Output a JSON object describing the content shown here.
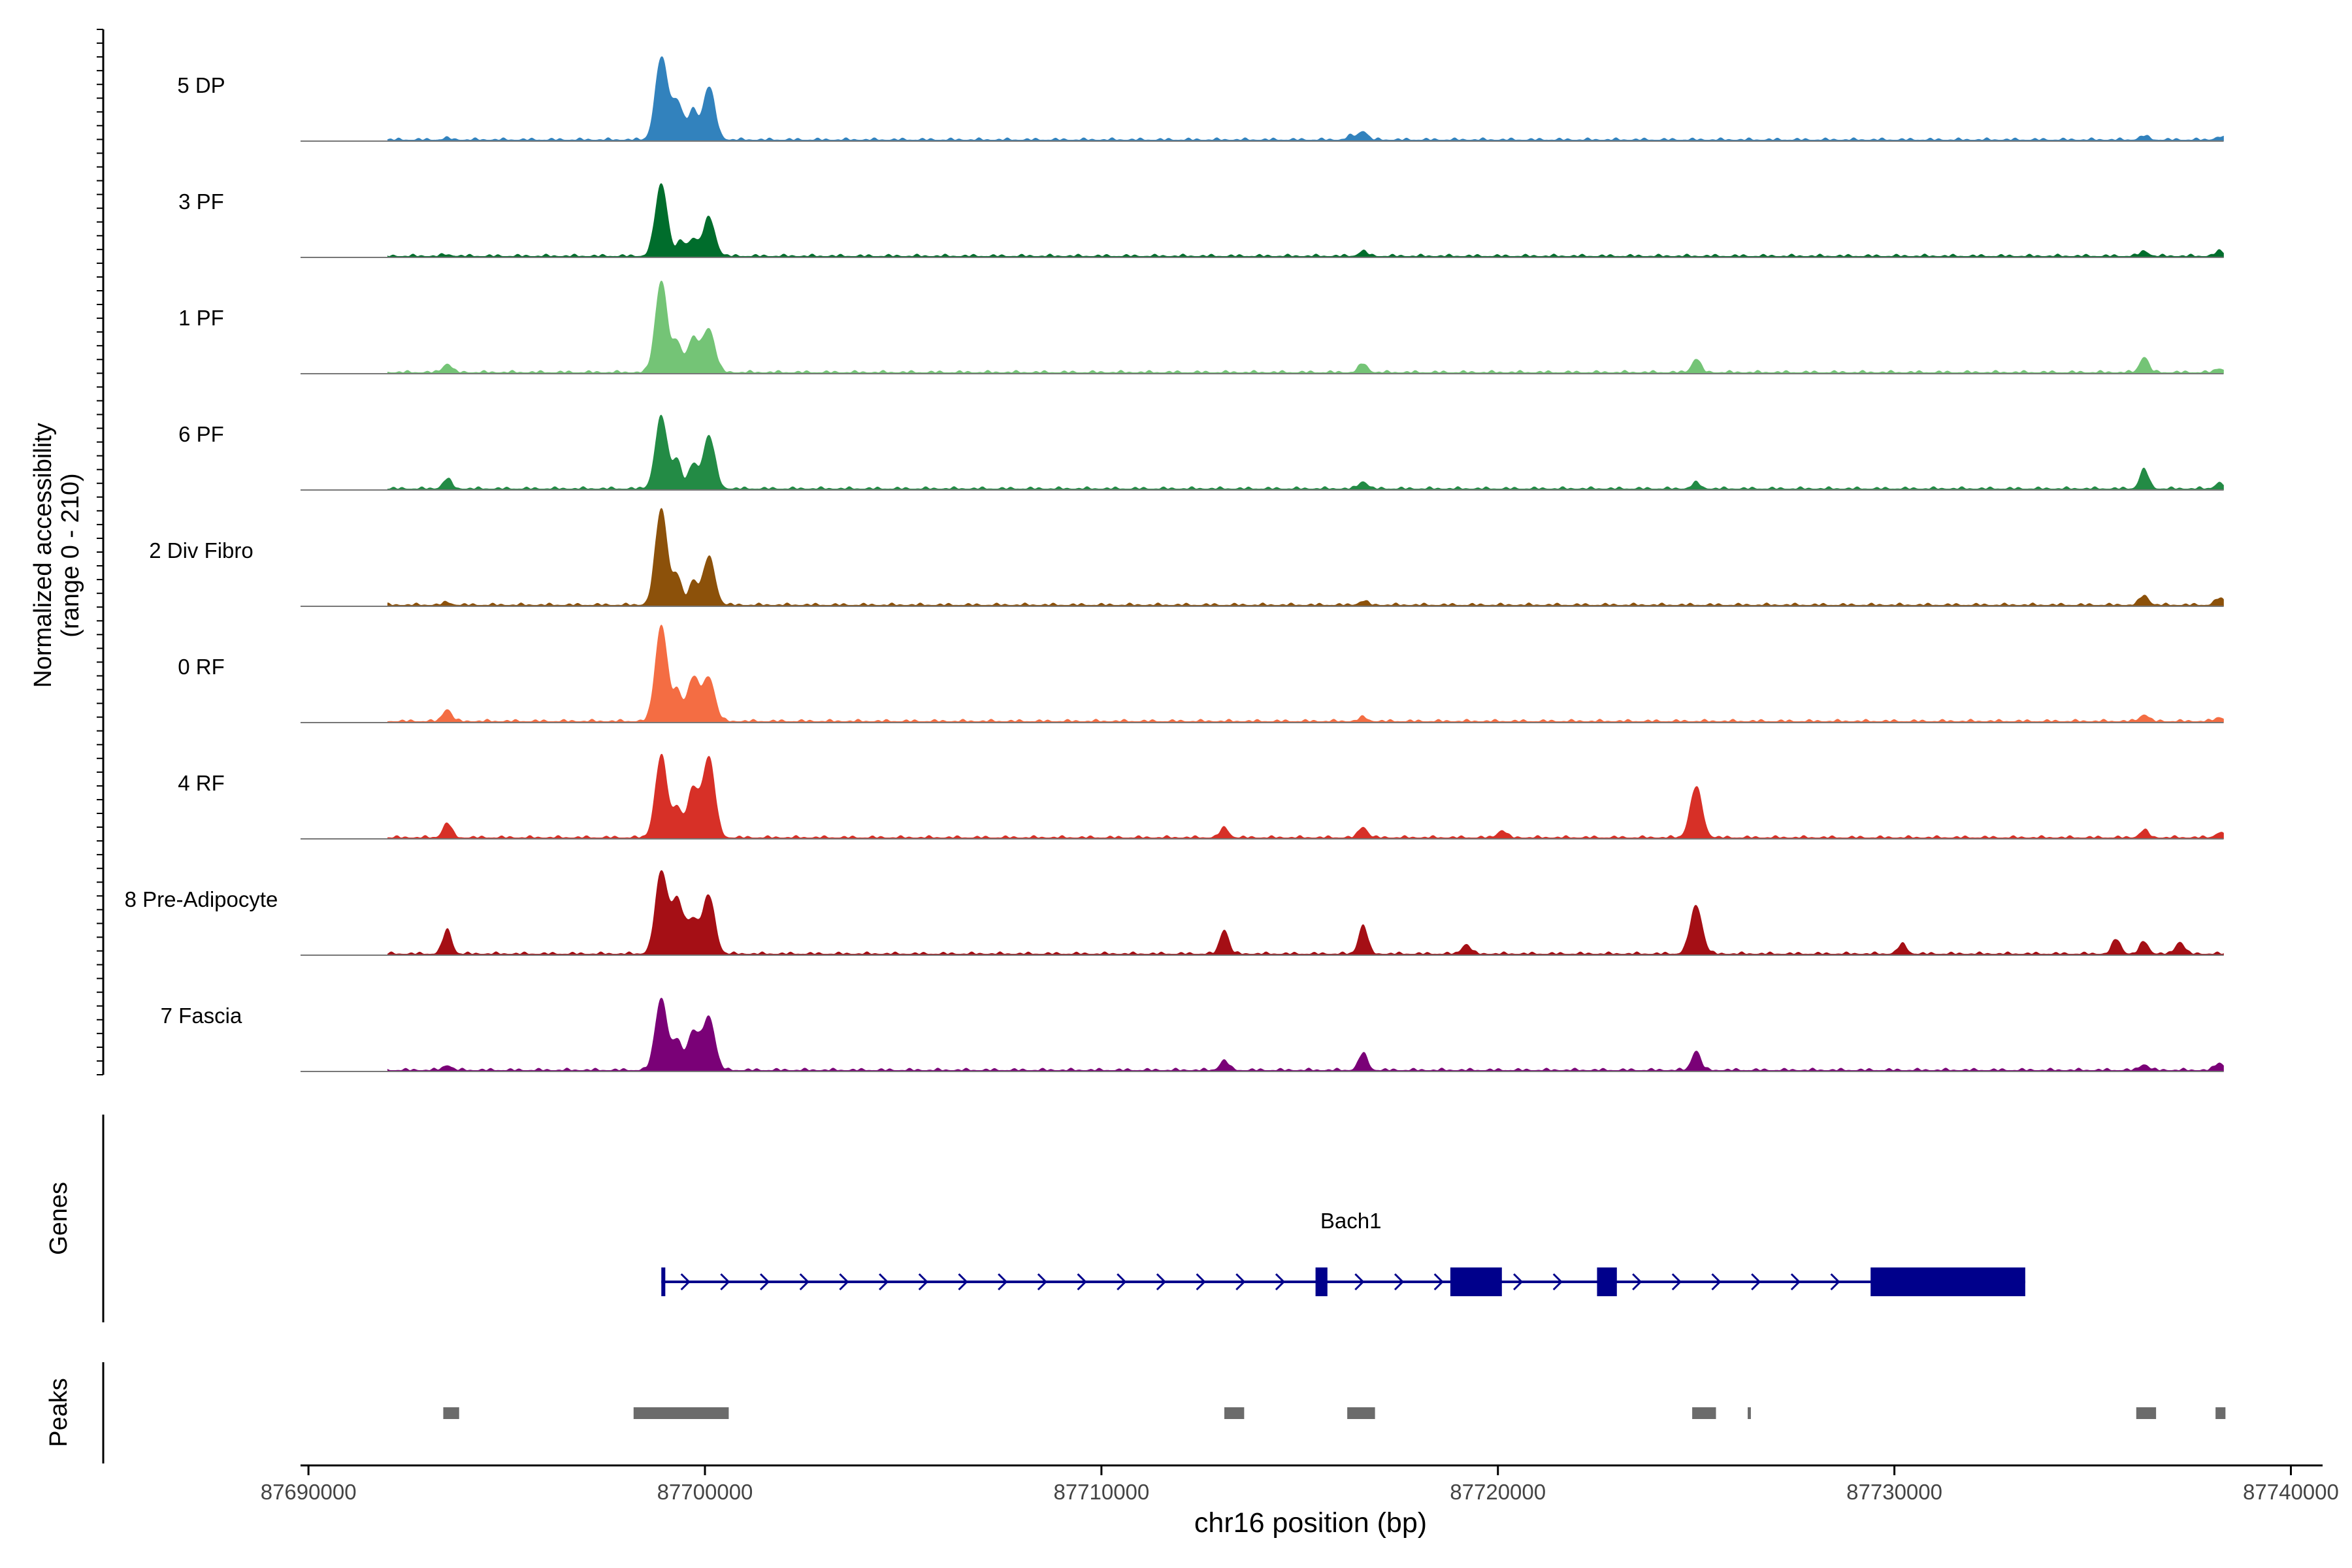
{
  "chart_data": {
    "type": "area",
    "title": "",
    "ylabel_line1": "Normalized accessibility",
    "ylabel_line2": "(range 0 - 210)",
    "yrange": [
      0,
      210
    ],
    "xlabel": "chr16 position (bp)",
    "xlim": [
      87689800,
      87740800
    ],
    "xticks": [
      87690000,
      87700000,
      87710000,
      87720000,
      87730000,
      87740000
    ],
    "xtick_labels": [
      "87690000",
      "87700000",
      "87710000",
      "87720000",
      "87730000",
      "87740000"
    ],
    "track_labels": {
      "genes": "Genes",
      "peaks": "Peaks"
    },
    "series": [
      {
        "name": "5 DP",
        "color": "#3282BD",
        "peaks": [
          [
            87693500,
            3
          ],
          [
            87698900,
            170
          ],
          [
            87699300,
            80
          ],
          [
            87699700,
            60
          ],
          [
            87700100,
            110
          ],
          [
            87716600,
            18
          ],
          [
            87716300,
            8
          ],
          [
            87736300,
            8
          ],
          [
            87738200,
            6
          ]
        ]
      },
      {
        "name": "3 PF",
        "color": "#006D2C",
        "peaks": [
          [
            87693500,
            3
          ],
          [
            87698900,
            150
          ],
          [
            87699400,
            30
          ],
          [
            87699700,
            35
          ],
          [
            87700100,
            80
          ],
          [
            87716600,
            10
          ],
          [
            87736300,
            10
          ],
          [
            87738200,
            10
          ]
        ]
      },
      {
        "name": "1 PF",
        "color": "#74C476",
        "peaks": [
          [
            87693500,
            18
          ],
          [
            87698900,
            190
          ],
          [
            87699300,
            60
          ],
          [
            87699700,
            70
          ],
          [
            87700100,
            90
          ],
          [
            87716600,
            18
          ],
          [
            87725000,
            28
          ],
          [
            87736300,
            32
          ],
          [
            87738200,
            8
          ]
        ]
      },
      {
        "name": "6 PF",
        "color": "#238B45",
        "peaks": [
          [
            87693500,
            20
          ],
          [
            87698900,
            150
          ],
          [
            87699300,
            60
          ],
          [
            87699700,
            50
          ],
          [
            87700100,
            110
          ],
          [
            87716600,
            15
          ],
          [
            87725000,
            12
          ],
          [
            87736300,
            40
          ],
          [
            87738200,
            12
          ]
        ]
      },
      {
        "name": "2 Div Fibro",
        "color": "#8C510A",
        "peaks": [
          [
            87693500,
            5
          ],
          [
            87698900,
            200
          ],
          [
            87699300,
            60
          ],
          [
            87699700,
            50
          ],
          [
            87700100,
            100
          ],
          [
            87716600,
            8
          ],
          [
            87736300,
            20
          ],
          [
            87738200,
            14
          ]
        ]
      },
      {
        "name": "0 RF",
        "color": "#F46D43",
        "peaks": [
          [
            87693500,
            25
          ],
          [
            87698900,
            200
          ],
          [
            87699300,
            60
          ],
          [
            87699700,
            90
          ],
          [
            87700100,
            90
          ],
          [
            87716600,
            8
          ],
          [
            87736300,
            14
          ],
          [
            87738200,
            8
          ]
        ]
      },
      {
        "name": "4 RF",
        "color": "#D73027",
        "peaks": [
          [
            87693500,
            30
          ],
          [
            87698900,
            170
          ],
          [
            87699300,
            60
          ],
          [
            87699700,
            100
          ],
          [
            87700100,
            165
          ],
          [
            87713100,
            20
          ],
          [
            87716600,
            22
          ],
          [
            87720100,
            15
          ],
          [
            87725000,
            105
          ],
          [
            87736300,
            15
          ],
          [
            87738200,
            10
          ]
        ]
      },
      {
        "name": "8 Pre-Adipocyte",
        "color": "#A50F15",
        "peaks": [
          [
            87693500,
            50
          ],
          [
            87698900,
            170
          ],
          [
            87699300,
            110
          ],
          [
            87699700,
            70
          ],
          [
            87700100,
            120
          ],
          [
            87713100,
            50
          ],
          [
            87716600,
            60
          ],
          [
            87719200,
            20
          ],
          [
            87725000,
            100
          ],
          [
            87730200,
            20
          ],
          [
            87735600,
            30
          ],
          [
            87736300,
            25
          ],
          [
            87737200,
            25
          ]
        ]
      },
      {
        "name": "7 Fascia",
        "color": "#7A0177",
        "peaks": [
          [
            87693500,
            10
          ],
          [
            87698900,
            150
          ],
          [
            87699300,
            60
          ],
          [
            87699700,
            80
          ],
          [
            87700100,
            110
          ],
          [
            87713100,
            20
          ],
          [
            87716600,
            35
          ],
          [
            87725000,
            40
          ],
          [
            87736300,
            12
          ],
          [
            87738200,
            15
          ]
        ]
      }
    ],
    "gene": {
      "name": "Bach1",
      "color": "#00008B",
      "start": 87698900,
      "end": 87733300,
      "strand": "+",
      "exons": [
        [
          87698900,
          87699000
        ],
        [
          87715400,
          87715700
        ],
        [
          87718800,
          87720100
        ],
        [
          87722500,
          87723000
        ],
        [
          87729400,
          87733300
        ]
      ]
    },
    "peak_regions": [
      [
        87693400,
        87693800
      ],
      [
        87698200,
        87700600
      ],
      [
        87713100,
        87713600
      ],
      [
        87716200,
        87716900
      ],
      [
        87724900,
        87725500
      ],
      [
        87726300,
        87726380
      ],
      [
        87736100,
        87736600
      ],
      [
        87738100,
        87738350
      ]
    ],
    "peak_color": "#6B6B6B"
  }
}
